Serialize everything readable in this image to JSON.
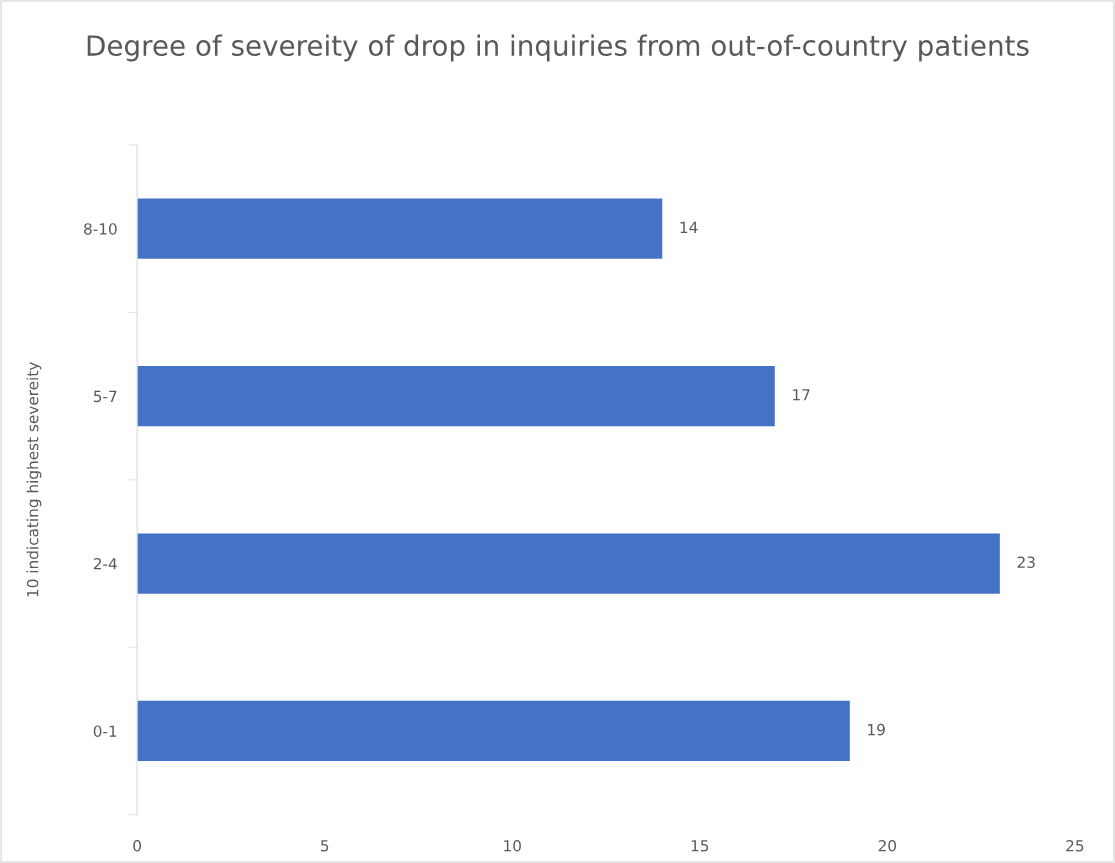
{
  "chart_data": {
    "type": "bar",
    "orientation": "horizontal",
    "title": "Degree of severeity of drop in inquiries from out-of-country patients",
    "ylabel": "10 indicating highest severeity",
    "categories": [
      "8-10",
      "5-7",
      "2-4",
      "0-1"
    ],
    "values": [
      14,
      17,
      23,
      19
    ],
    "color": "#4472c4",
    "xlim": [
      0,
      25
    ],
    "xticks": [
      0,
      5,
      10,
      15,
      20,
      25
    ],
    "grid": false,
    "data_labels": true
  }
}
